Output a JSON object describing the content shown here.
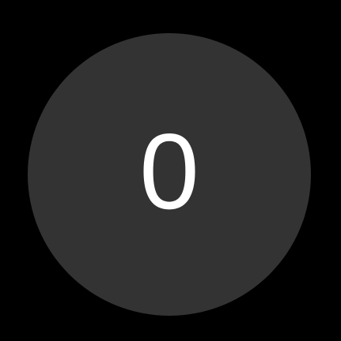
{
  "key": {
    "label": "0",
    "background_color": "#333333",
    "text_color": "#ffffff"
  },
  "screen": {
    "background_color": "#000000"
  }
}
